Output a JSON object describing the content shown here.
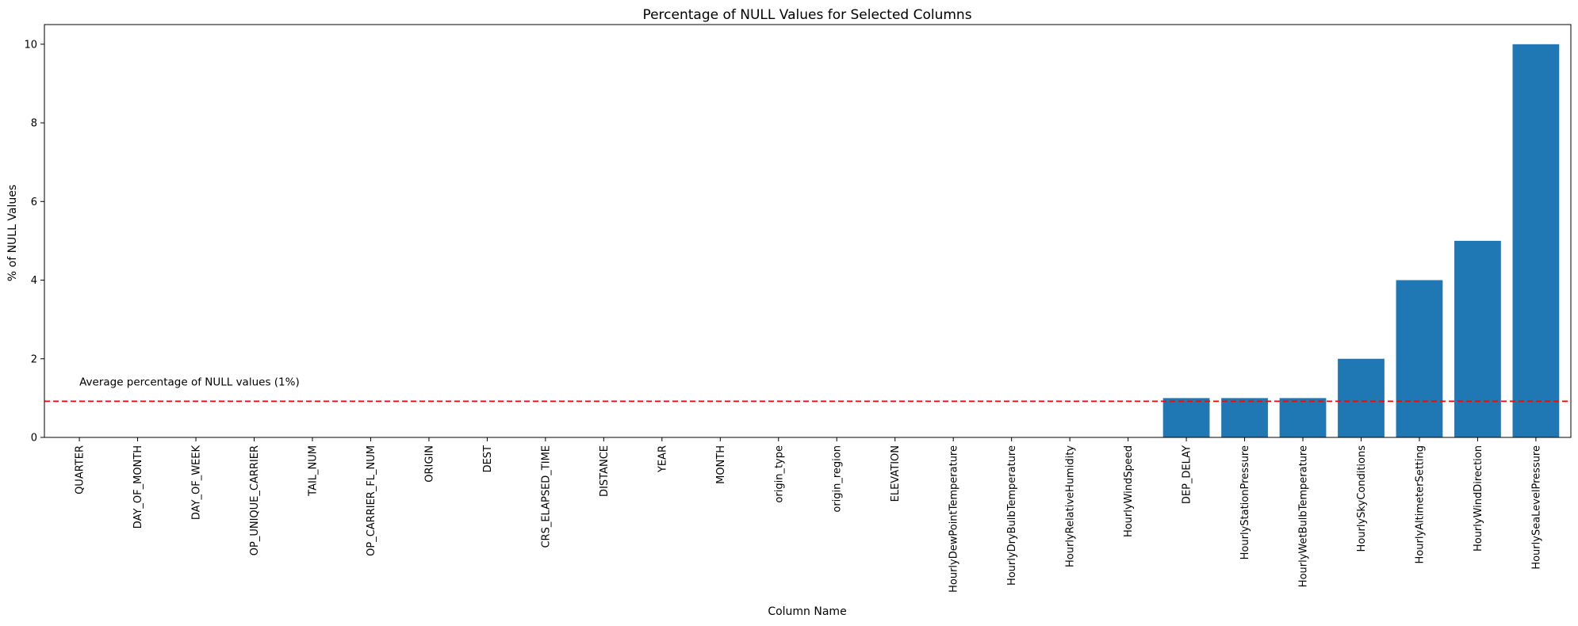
{
  "chart_data": {
    "type": "bar",
    "title": "Percentage of NULL Values for Selected Columns",
    "xlabel": "Column Name",
    "ylabel": "% of NULL Values",
    "ylim": [
      0,
      10.5
    ],
    "yticks": [
      0,
      2,
      4,
      6,
      8,
      10
    ],
    "grid": false,
    "bar_color": "#1f77b4",
    "categories": [
      "QUARTER",
      "DAY_OF_MONTH",
      "DAY_OF_WEEK",
      "OP_UNIQUE_CARRIER",
      "TAIL_NUM",
      "OP_CARRIER_FL_NUM",
      "ORIGIN",
      "DEST",
      "CRS_ELAPSED_TIME",
      "DISTANCE",
      "YEAR",
      "MONTH",
      "origin_type",
      "origin_region",
      "ELEVATION",
      "HourlyDewPointTemperature",
      "HourlyDryBulbTemperature",
      "HourlyRelativeHumidity",
      "HourlyWindSpeed",
      "DEP_DELAY",
      "HourlyStationPressure",
      "HourlyWetBulbTemperature",
      "HourlySkyConditions",
      "HourlyAltimeterSetting",
      "HourlyWindDirection",
      "HourlySeaLevelPressure"
    ],
    "values": [
      0,
      0,
      0,
      0,
      0,
      0,
      0,
      0,
      0,
      0,
      0,
      0,
      0,
      0,
      0,
      0,
      0,
      0,
      0,
      1,
      1,
      1,
      2,
      4,
      5,
      10
    ],
    "reference_line": {
      "value": 0.92,
      "color": "#ff0000",
      "style": "dashed",
      "label": "Average percentage of NULL values (1%)"
    }
  }
}
